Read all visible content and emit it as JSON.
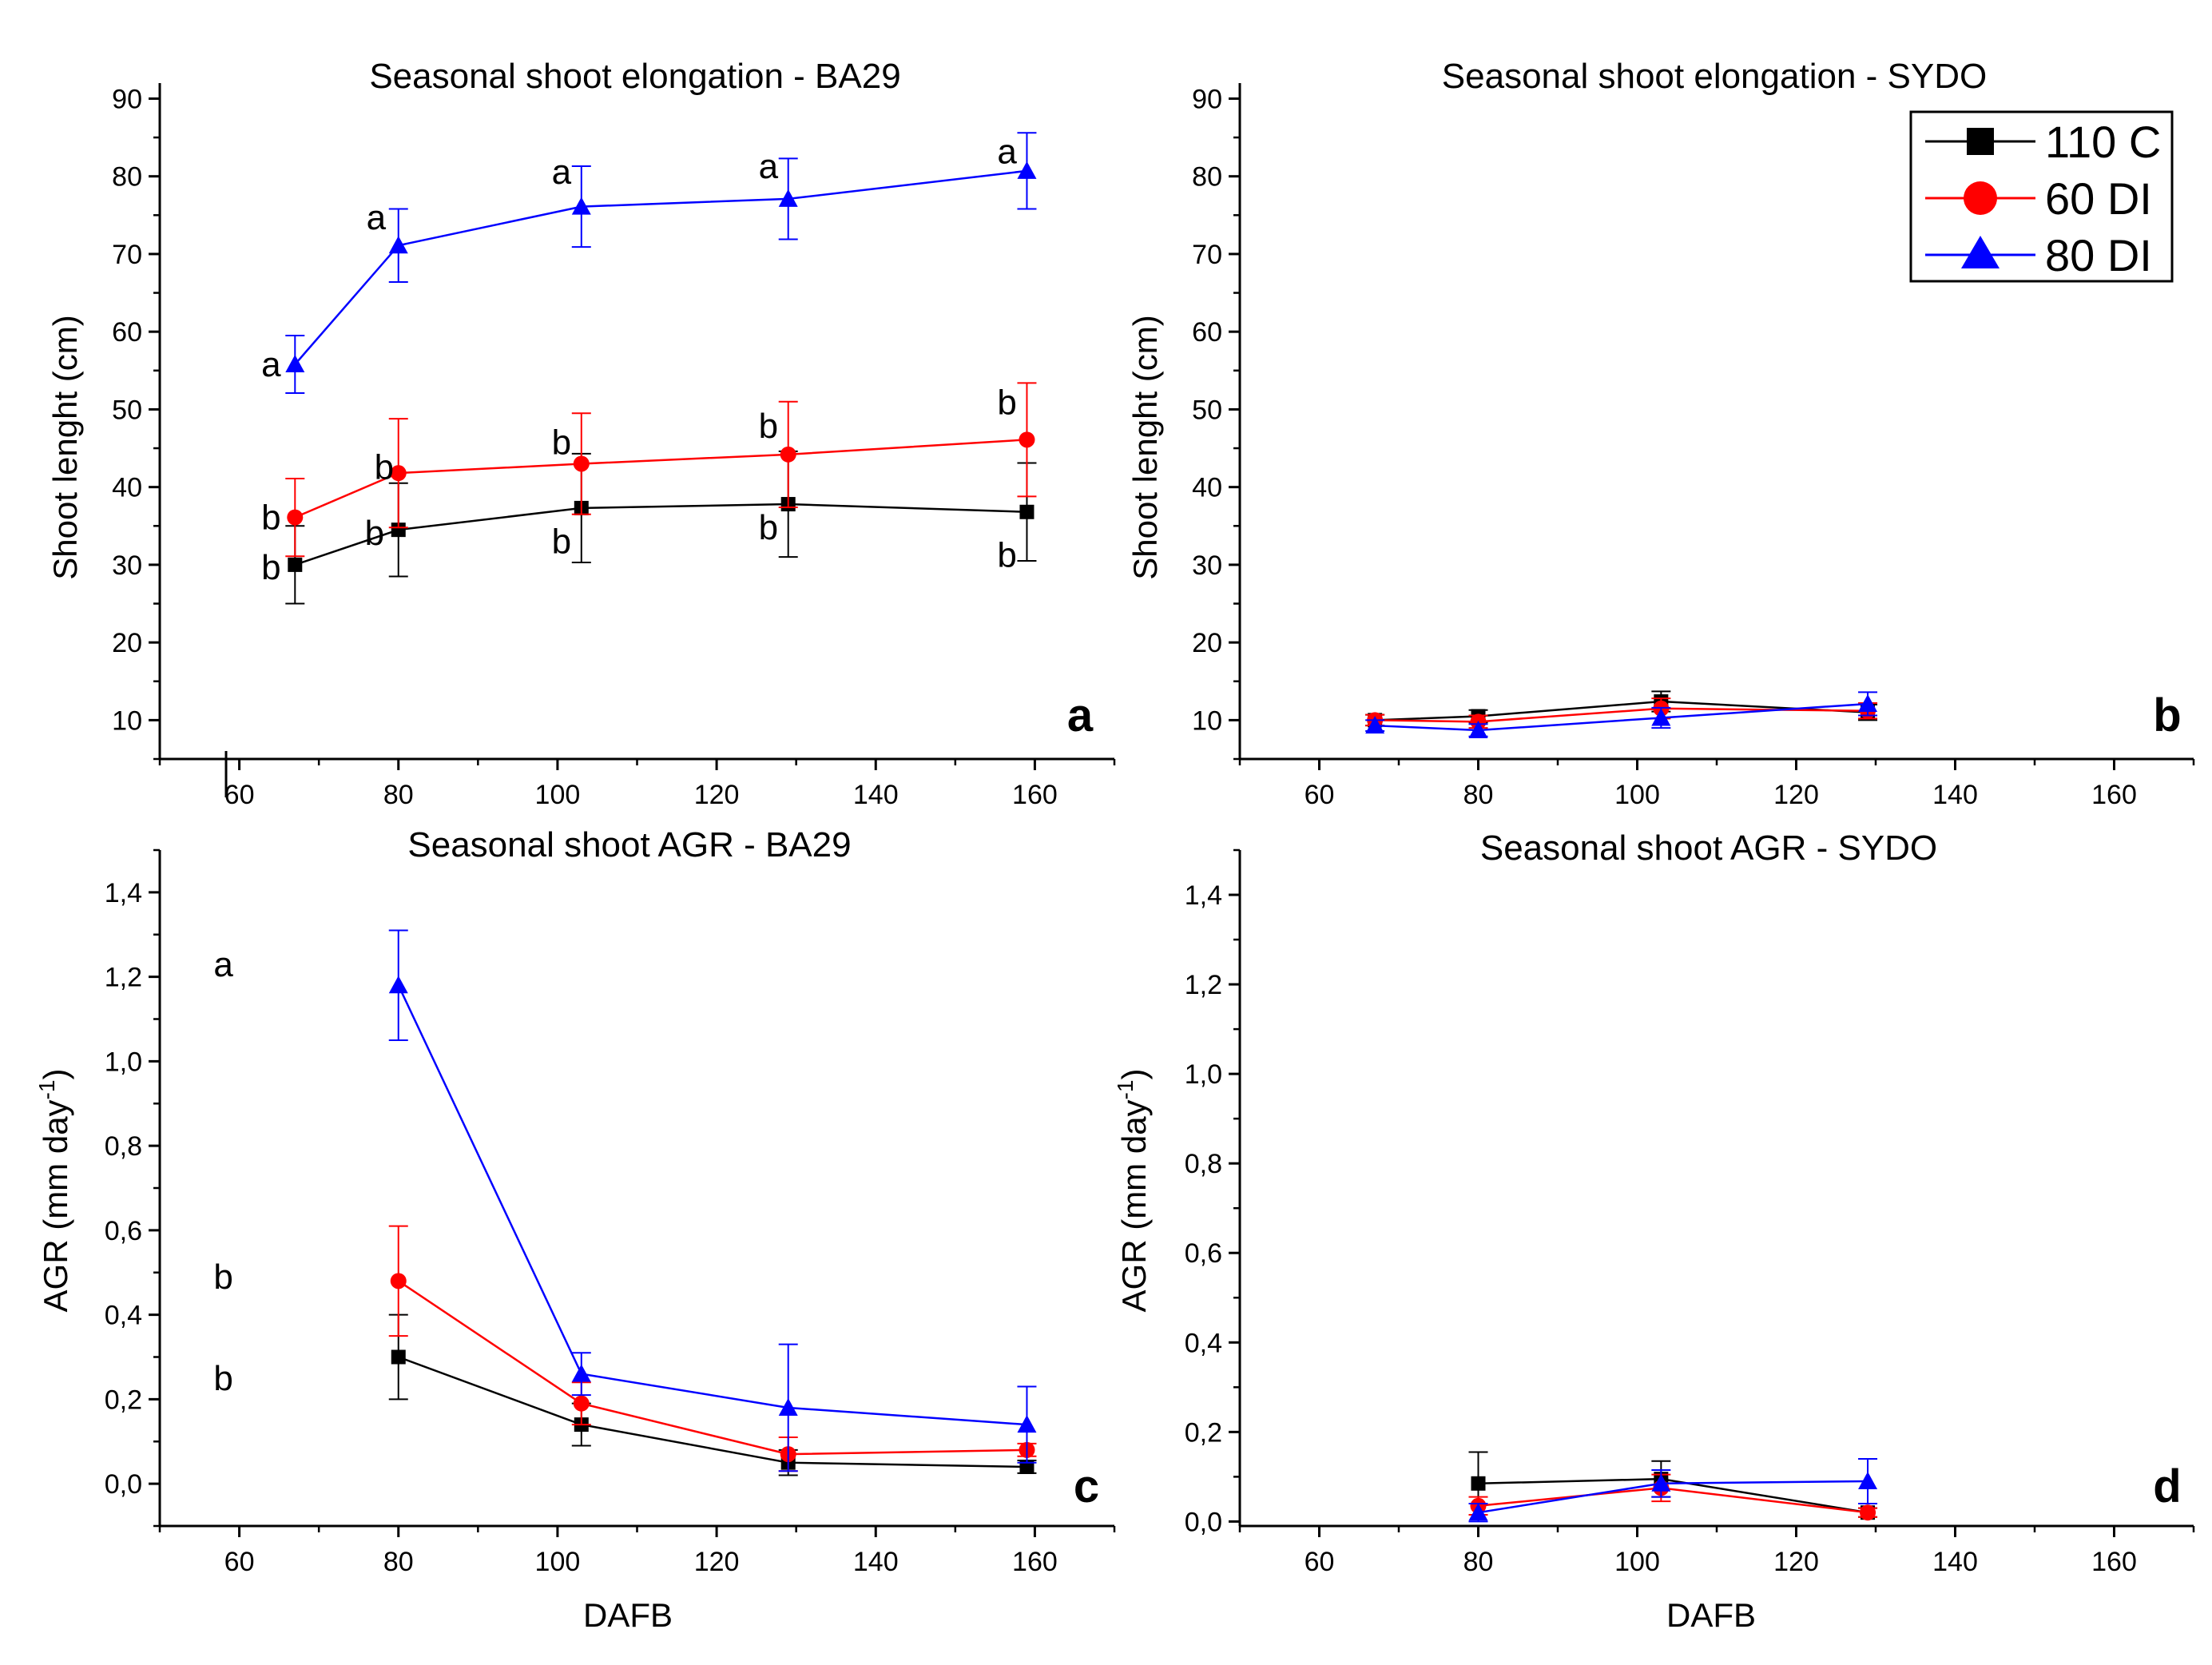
{
  "legend": [
    {
      "name": "110 C",
      "color": "#000000",
      "marker": "square"
    },
    {
      "name": "60 DI",
      "color": "#ff0000",
      "marker": "circle"
    },
    {
      "name": "80 DI",
      "color": "#0000ff",
      "marker": "triangle"
    }
  ],
  "chart_data": [
    {
      "type": "line",
      "panel": "a",
      "title": "Seasonal shoot elongation - BA29",
      "xlabel": "",
      "ylabel": "Shoot lenght (cm)",
      "xlim": [
        50,
        170
      ],
      "ylim": [
        5,
        92
      ],
      "xticks": [
        60,
        80,
        100,
        120,
        140,
        160
      ],
      "yticks": [
        10,
        20,
        30,
        40,
        50,
        60,
        70,
        80,
        90
      ],
      "tick_labels_x": [
        "60",
        "80",
        "100",
        "120",
        "140",
        "160"
      ],
      "tick_labels_y": [
        "10",
        "20",
        "30",
        "40",
        "50",
        "60",
        "70",
        "80",
        "90"
      ],
      "series": [
        {
          "name": "110 C",
          "x": [
            67,
            80,
            103,
            129,
            159
          ],
          "y": [
            30,
            34.5,
            37.3,
            37.8,
            36.8
          ],
          "err": [
            5,
            6,
            7,
            6.8,
            6.3
          ],
          "labels": [
            "b",
            "b",
            "b",
            "b",
            "b"
          ],
          "label_dx": [
            -3,
            -3,
            -2.5,
            -2.5,
            -2.5
          ],
          "label_dy": [
            -0.3,
            -0.4,
            -4.3,
            -3,
            -5.5
          ]
        },
        {
          "name": "60 DI",
          "x": [
            67,
            80,
            103,
            129,
            159
          ],
          "y": [
            36.1,
            41.8,
            43,
            44.2,
            46.1
          ],
          "err": [
            5,
            7,
            6.5,
            6.8,
            7.3
          ],
          "labels": [
            "b",
            "b",
            "b",
            "b",
            "b"
          ],
          "label_dx": [
            -3,
            -1.8,
            -2.5,
            -2.5,
            -2.5
          ],
          "label_dy": [
            0,
            0.8,
            2.8,
            3.7,
            4.8
          ]
        },
        {
          "name": "80 DI",
          "x": [
            67,
            80,
            103,
            129,
            159
          ],
          "y": [
            55.8,
            71.1,
            76.1,
            77.1,
            80.7
          ],
          "err": [
            3.7,
            4.7,
            5.2,
            5.2,
            4.9
          ],
          "labels": [
            "a",
            "a",
            "a",
            "a",
            "a"
          ],
          "label_dx": [
            -3,
            -2.8,
            -2.5,
            -2.5,
            -2.5
          ],
          "label_dy": [
            0,
            3.6,
            4.5,
            4.2,
            2.5
          ]
        }
      ]
    },
    {
      "type": "line",
      "panel": "b",
      "title": "Seasonal shoot elongation - SYDO",
      "xlabel": "",
      "ylabel": "Shoot lenght (cm)",
      "xlim": [
        50,
        170
      ],
      "ylim": [
        5,
        92
      ],
      "xticks": [
        60,
        80,
        100,
        120,
        140,
        160
      ],
      "yticks": [
        10,
        20,
        30,
        40,
        50,
        60,
        70,
        80,
        90
      ],
      "tick_labels_x": [
        "60",
        "80",
        "100",
        "120",
        "140",
        "160"
      ],
      "tick_labels_y": [
        "10",
        "20",
        "30",
        "40",
        "50",
        "60",
        "70",
        "80",
        "90"
      ],
      "series": [
        {
          "name": "110 C",
          "x": [
            67,
            80,
            103,
            129
          ],
          "y": [
            10,
            10.5,
            12.4,
            11
          ],
          "err": [
            0.7,
            0.8,
            1.3,
            1
          ]
        },
        {
          "name": "60 DI",
          "x": [
            67,
            80,
            103,
            129
          ],
          "y": [
            10,
            9.8,
            11.5,
            11.2
          ],
          "err": [
            0.7,
            0.8,
            1.3,
            1
          ]
        },
        {
          "name": "80 DI",
          "x": [
            67,
            80,
            103,
            129
          ],
          "y": [
            9.3,
            8.7,
            10.3,
            12.1
          ],
          "err": [
            0.7,
            0.8,
            1.3,
            1.5
          ]
        }
      ]
    },
    {
      "type": "line",
      "panel": "c",
      "title": "Seasonal shoot AGR - BA29",
      "xlabel": "DAFB",
      "ylabel": "AGR (mm day",
      "ylabel_sup": "-1",
      "ylabel_tail": ")",
      "xlim": [
        50,
        170
      ],
      "ylim": [
        -0.1,
        1.5
      ],
      "xticks": [
        60,
        80,
        100,
        120,
        140,
        160
      ],
      "yticks": [
        0,
        0.2,
        0.4,
        0.6,
        0.8,
        1.0,
        1.2,
        1.4
      ],
      "tick_labels_x": [
        "60",
        "80",
        "100",
        "120",
        "140",
        "160"
      ],
      "tick_labels_y": [
        "0,0",
        "0,2",
        "0,4",
        "0,6",
        "0,8",
        "1,0",
        "1,2",
        "1,4"
      ],
      "annotations": [
        {
          "text": "a",
          "x": 58,
          "y": 1.23
        },
        {
          "text": "b",
          "x": 58,
          "y": 0.49
        },
        {
          "text": "b",
          "x": 58,
          "y": 0.25
        }
      ],
      "series": [
        {
          "name": "110 C",
          "x": [
            80,
            103,
            129,
            159
          ],
          "y": [
            0.3,
            0.14,
            0.05,
            0.04
          ],
          "err": [
            0.1,
            0.05,
            0.03,
            0.015
          ]
        },
        {
          "name": "60 DI",
          "x": [
            80,
            103,
            129,
            159
          ],
          "y": [
            0.48,
            0.19,
            0.07,
            0.08
          ],
          "err": [
            0.13,
            0.05,
            0.04,
            0.015
          ]
        },
        {
          "name": "80 DI",
          "x": [
            80,
            103,
            129,
            159
          ],
          "y": [
            1.18,
            0.26,
            0.18,
            0.14
          ],
          "err": [
            0.13,
            0.05,
            0.15,
            0.09
          ]
        }
      ]
    },
    {
      "type": "line",
      "panel": "d",
      "title": "Seasonal shoot AGR - SYDO",
      "xlabel": "DAFB",
      "ylabel": "AGR (mm day",
      "ylabel_sup": "-1",
      "ylabel_tail": ")",
      "xlim": [
        50,
        170
      ],
      "ylim": [
        -0.01,
        1.5
      ],
      "xticks": [
        60,
        80,
        100,
        120,
        140,
        160
      ],
      "yticks": [
        0,
        0.2,
        0.4,
        0.6,
        0.8,
        1.0,
        1.2,
        1.4
      ],
      "tick_labels_x": [
        "60",
        "80",
        "100",
        "120",
        "140",
        "160"
      ],
      "tick_labels_y": [
        "0,0",
        "0,2",
        "0,4",
        "0,6",
        "0,8",
        "1,0",
        "1,2",
        "1,4"
      ],
      "series": [
        {
          "name": "110 C",
          "x": [
            80,
            103,
            129
          ],
          "y": [
            0.085,
            0.095,
            0.02
          ],
          "err": [
            0.07,
            0.04,
            0.01
          ]
        },
        {
          "name": "60 DI",
          "x": [
            80,
            103,
            129
          ],
          "y": [
            0.035,
            0.075,
            0.02
          ],
          "err": [
            0.02,
            0.03,
            0.01
          ]
        },
        {
          "name": "80 DI",
          "x": [
            80,
            103,
            129
          ],
          "y": [
            0.02,
            0.085,
            0.09
          ],
          "err": [
            0.02,
            0.03,
            0.05
          ]
        }
      ]
    }
  ]
}
